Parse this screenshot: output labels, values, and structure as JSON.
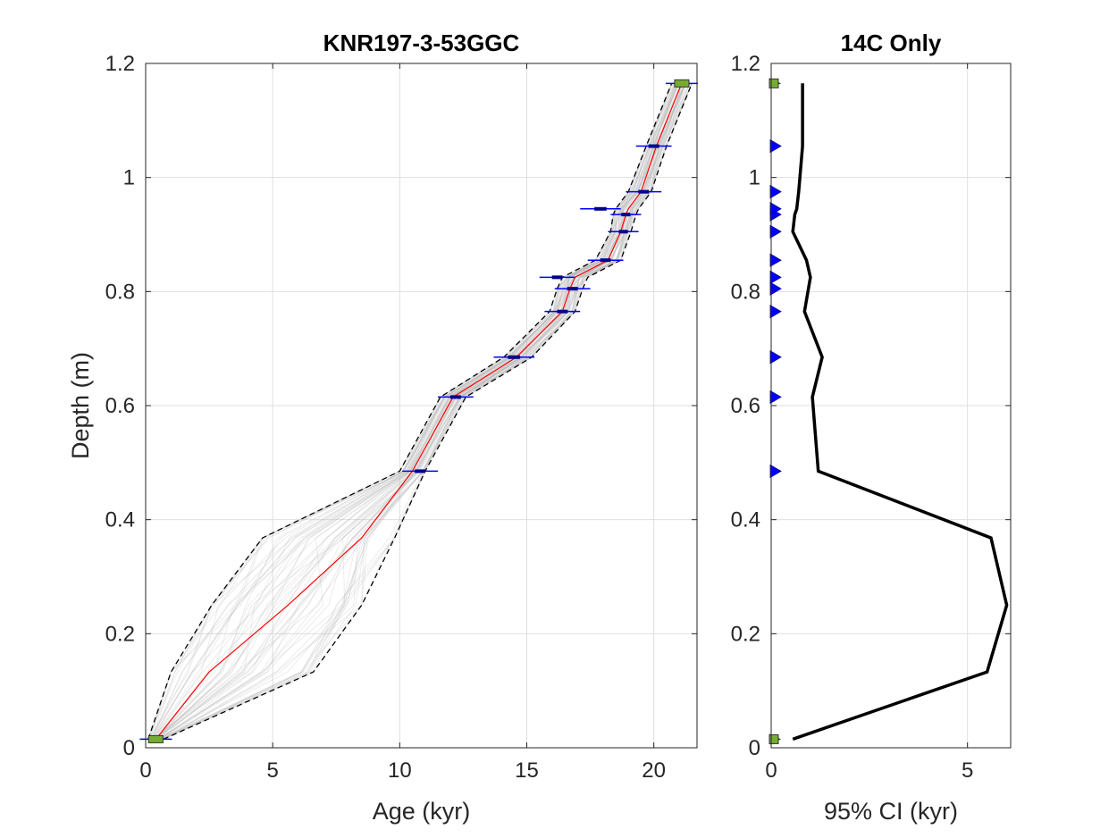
{
  "chart_data": [
    {
      "type": "line",
      "title": "KNR197-3-53GGC",
      "xlabel": "Age (kyr)",
      "ylabel": "Depth (m)",
      "xlim": [
        0,
        21.7
      ],
      "ylim": [
        0,
        1.2
      ],
      "x_ticks": [
        "0",
        "5",
        "10",
        "15",
        "20"
      ],
      "y_ticks": [
        "0",
        "0.2",
        "0.4",
        "0.6",
        "0.8",
        "1",
        "1.2"
      ],
      "grid": true,
      "series": [
        {
          "role": "median",
          "color": "#ff0000",
          "points": [
            [
              0.4,
              0.015
            ],
            [
              2.5,
              0.133
            ],
            [
              5.6,
              0.25
            ],
            [
              8.5,
              0.368
            ],
            [
              10.5,
              0.485
            ],
            [
              12.1,
              0.615
            ],
            [
              14.6,
              0.685
            ],
            [
              16.4,
              0.765
            ],
            [
              16.7,
              0.805
            ],
            [
              16.9,
              0.825
            ],
            [
              18.2,
              0.855
            ],
            [
              18.7,
              0.905
            ],
            [
              18.9,
              0.935
            ],
            [
              19.0,
              0.945
            ],
            [
              19.5,
              0.975
            ],
            [
              20.1,
              1.055
            ],
            [
              21.1,
              1.165
            ]
          ]
        },
        {
          "role": "lower-95",
          "color": "#000000",
          "points": [
            [
              0.1,
              0.015
            ],
            [
              1.0,
              0.133
            ],
            [
              2.6,
              0.25
            ],
            [
              4.6,
              0.368
            ],
            [
              10.0,
              0.485
            ],
            [
              11.6,
              0.615
            ],
            [
              14.1,
              0.685
            ],
            [
              15.9,
              0.765
            ],
            [
              16.2,
              0.805
            ],
            [
              16.4,
              0.825
            ],
            [
              17.7,
              0.855
            ],
            [
              18.3,
              0.905
            ],
            [
              18.4,
              0.935
            ],
            [
              18.5,
              0.945
            ],
            [
              19.0,
              0.975
            ],
            [
              19.7,
              1.055
            ],
            [
              20.7,
              1.165
            ]
          ]
        },
        {
          "role": "upper-95",
          "color": "#000000",
          "points": [
            [
              0.7,
              0.015
            ],
            [
              6.6,
              0.133
            ],
            [
              8.5,
              0.25
            ],
            [
              9.8,
              0.368
            ],
            [
              11.0,
              0.485
            ],
            [
              12.6,
              0.615
            ],
            [
              15.2,
              0.685
            ],
            [
              16.9,
              0.765
            ],
            [
              17.2,
              0.805
            ],
            [
              17.4,
              0.825
            ],
            [
              18.7,
              0.855
            ],
            [
              19.1,
              0.905
            ],
            [
              19.3,
              0.935
            ],
            [
              19.4,
              0.945
            ],
            [
              19.9,
              0.975
            ],
            [
              20.5,
              1.055
            ],
            [
              21.5,
              1.165
            ]
          ]
        }
      ],
      "ensemble_band_color": "#b4b4b4",
      "dates_14c": [
        {
          "age": 10.8,
          "depth": 0.485,
          "err": 0.7
        },
        {
          "age": 12.2,
          "depth": 0.615,
          "err": 0.7
        },
        {
          "age": 14.5,
          "depth": 0.685,
          "err": 0.8
        },
        {
          "age": 16.4,
          "depth": 0.765,
          "err": 0.7
        },
        {
          "age": 16.8,
          "depth": 0.805,
          "err": 0.7
        },
        {
          "age": 16.2,
          "depth": 0.825,
          "err": 0.7
        },
        {
          "age": 18.1,
          "depth": 0.855,
          "err": 0.7
        },
        {
          "age": 18.8,
          "depth": 0.905,
          "err": 0.6
        },
        {
          "age": 18.9,
          "depth": 0.935,
          "err": 0.6
        },
        {
          "age": 17.9,
          "depth": 0.945,
          "err": 0.8
        },
        {
          "age": 19.6,
          "depth": 0.975,
          "err": 0.7
        },
        {
          "age": 20.0,
          "depth": 1.055,
          "err": 0.7
        }
      ],
      "date_color": "#0000ff",
      "anchors": [
        {
          "age": 0.4,
          "depth": 0.015
        },
        {
          "age": 21.1,
          "depth": 1.165
        }
      ],
      "anchor_color": "#77ac30"
    },
    {
      "type": "line",
      "title": "14C Only",
      "xlabel": "95% CI (kyr)",
      "ylabel": "",
      "xlim": [
        0,
        6.1
      ],
      "ylim": [
        0,
        1.2
      ],
      "x_ticks": [
        "0",
        "5"
      ],
      "y_ticks": [
        "0",
        "0.2",
        "0.4",
        "0.6",
        "0.8",
        "1",
        "1.2"
      ],
      "grid": true,
      "series": [
        {
          "role": "ci-width",
          "color": "#000000",
          "points": [
            [
              0.55,
              0.015
            ],
            [
              5.5,
              0.133
            ],
            [
              6.0,
              0.25
            ],
            [
              5.6,
              0.368
            ],
            [
              1.2,
              0.485
            ],
            [
              1.05,
              0.615
            ],
            [
              1.3,
              0.685
            ],
            [
              0.85,
              0.765
            ],
            [
              0.95,
              0.805
            ],
            [
              1.0,
              0.825
            ],
            [
              0.9,
              0.855
            ],
            [
              0.55,
              0.905
            ],
            [
              0.6,
              0.935
            ],
            [
              0.65,
              0.945
            ],
            [
              0.7,
              0.975
            ],
            [
              0.8,
              1.055
            ],
            [
              0.8,
              1.165
            ]
          ]
        }
      ],
      "marker_depths_14c": [
        0.485,
        0.615,
        0.685,
        0.765,
        0.805,
        0.825,
        0.855,
        0.905,
        0.935,
        0.945,
        0.975,
        1.055
      ],
      "marker_color": "#0000ff",
      "anchor_depths": [
        0.015,
        1.165
      ],
      "anchor_color": "#77ac30"
    }
  ]
}
